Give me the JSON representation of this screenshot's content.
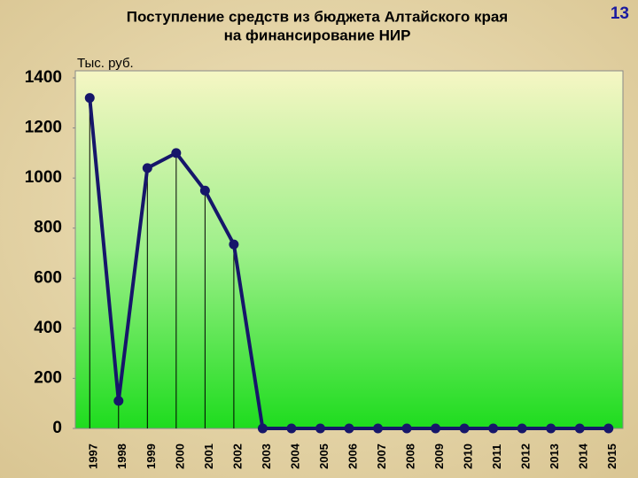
{
  "page_number": "13",
  "chart_data": {
    "type": "line",
    "title_lines": [
      "Поступление средств из бюджета Алтайского края",
      "на финансирование НИР"
    ],
    "y_unit": "Тыс. руб.",
    "categories": [
      "1997",
      "1998",
      "1999",
      "2000",
      "2001",
      "2002",
      "2003",
      "2004",
      "2005",
      "2006",
      "2007",
      "2008",
      "2009",
      "2010",
      "2011",
      "2012",
      "2013",
      "2014",
      "2015"
    ],
    "values": [
      1320,
      110,
      1040,
      1100,
      950,
      735,
      0,
      0,
      0,
      0,
      0,
      0,
      0,
      0,
      0,
      0,
      0,
      0,
      0
    ],
    "color": "#16166a",
    "drop_lines": true,
    "ylim": [
      0,
      1400
    ],
    "yticks": [
      0,
      200,
      400,
      600,
      800,
      1000,
      1200,
      1400
    ],
    "grid": false
  }
}
